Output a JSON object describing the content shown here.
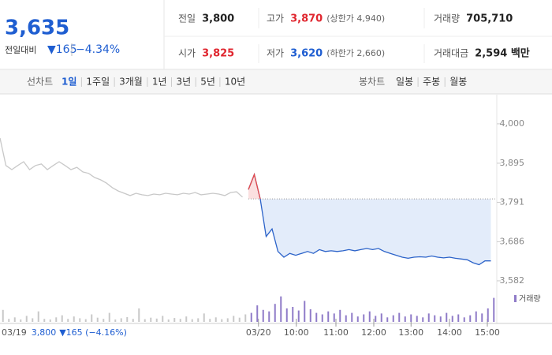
{
  "header": {
    "price": "3,635",
    "change_label": "전일대비",
    "change": "▼165",
    "change_rate": "−4.34%",
    "stats": [
      {
        "label": "전일",
        "value": "3,800"
      },
      {
        "label": "고가",
        "value": "3,870",
        "note": "(상한가 4,940)"
      },
      {
        "label": "거래량",
        "value": "705,710"
      },
      {
        "label": "시가",
        "value": "3,825"
      },
      {
        "label": "저가",
        "value": "3,620",
        "note": "(하한가 2,660)"
      },
      {
        "label": "거래대금",
        "value": "2,594 백만"
      }
    ]
  },
  "tabs": {
    "line_chart": "선차트",
    "periods": [
      "1일",
      "1주일",
      "3개월",
      "1년",
      "3년",
      "5년",
      "10년"
    ],
    "candle_chart": "봉차트",
    "candle_periods": [
      "일봉",
      "주봉",
      "월봉"
    ]
  },
  "info": {
    "date": "03/19",
    "price": "3,800",
    "change": "▼165 (−4.16%)"
  },
  "chart_data": {
    "type": "line",
    "x": [
      0,
      1,
      2,
      3,
      4,
      5,
      6,
      7,
      8,
      9,
      10,
      11,
      12,
      13,
      14,
      15,
      16,
      17,
      18,
      19,
      20,
      21,
      22,
      23,
      24,
      25,
      26,
      27,
      28,
      29,
      30,
      31,
      32,
      33,
      34,
      35,
      36,
      37,
      38,
      39,
      40,
      41,
      42,
      43,
      44,
      45,
      46,
      47,
      48,
      49,
      50,
      51,
      52,
      53,
      54,
      55,
      56,
      57,
      58,
      59,
      60,
      61,
      62,
      63,
      64,
      65,
      66,
      67,
      68,
      69,
      70,
      71,
      72,
      73,
      74,
      75,
      76,
      77,
      78,
      79,
      80,
      81,
      82,
      83
    ],
    "series": [
      {
        "color": "#c8c8c8",
        "values": [
          3962,
          3889,
          3878,
          3889,
          3899,
          3878,
          3889,
          3893,
          3878,
          3889,
          3899,
          3889,
          3878,
          3884,
          3872,
          3868,
          3857,
          3851,
          3842,
          3830,
          3821,
          3815,
          3809,
          3815,
          3811,
          3809,
          3813,
          3811,
          3815,
          3813,
          3811,
          3815,
          3813,
          3817,
          3811,
          3813,
          3815,
          3813,
          3809,
          3817,
          3819,
          3805,
          null,
          null,
          null,
          null,
          null,
          null,
          null,
          null,
          null,
          null,
          null,
          null,
          null,
          null,
          null,
          null,
          null,
          null,
          null,
          null,
          null,
          null,
          null,
          null,
          null,
          null,
          null,
          null,
          null,
          null,
          null,
          null,
          null,
          null,
          null,
          null,
          null,
          null,
          null,
          null,
          null,
          null
        ]
      },
      {
        "color": "#2c63c9",
        "up_color": "#e84a4a",
        "values": [
          null,
          null,
          null,
          null,
          null,
          null,
          null,
          null,
          null,
          null,
          null,
          null,
          null,
          null,
          null,
          null,
          null,
          null,
          null,
          null,
          null,
          null,
          null,
          null,
          null,
          null,
          null,
          null,
          null,
          null,
          null,
          null,
          null,
          null,
          null,
          null,
          null,
          null,
          null,
          null,
          null,
          null,
          3825,
          3865,
          3800,
          3700,
          3720,
          3660,
          3645,
          3655,
          3650,
          3655,
          3660,
          3655,
          3665,
          3660,
          3662,
          3660,
          3662,
          3665,
          3662,
          3665,
          3668,
          3665,
          3668,
          3660,
          3655,
          3650,
          3645,
          3642,
          3645,
          3646,
          3645,
          3648,
          3645,
          3643,
          3645,
          3642,
          3640,
          3638,
          3630,
          3625,
          3635,
          3635
        ]
      },
      {
        "name": "거래량",
        "color": "#8f7bc8",
        "prev_color": "#c8c8c8",
        "axis": "y2",
        "values": [
          40,
          10,
          15,
          8,
          20,
          12,
          35,
          10,
          8,
          15,
          22,
          10,
          18,
          12,
          9,
          25,
          14,
          10,
          30,
          8,
          12,
          16,
          10,
          45,
          9,
          14,
          11,
          20,
          8,
          13,
          10,
          18,
          9,
          12,
          28,
          10,
          15,
          9,
          12,
          20,
          14,
          25,
          30,
          55,
          40,
          35,
          60,
          85,
          45,
          50,
          38,
          70,
          42,
          30,
          25,
          35,
          28,
          40,
          22,
          30,
          18,
          25,
          35,
          20,
          28,
          15,
          22,
          30,
          18,
          25,
          20,
          15,
          28,
          22,
          18,
          30,
          20,
          25,
          15,
          22,
          35,
          28,
          45,
          80
        ]
      }
    ],
    "baseline": 3800,
    "xlim": [
      0,
      84
    ],
    "xticks": [
      {
        "value": 43.7,
        "label": "03/20"
      },
      {
        "value": 50.1,
        "label": "10:00"
      },
      {
        "value": 56.8,
        "label": "11:00"
      },
      {
        "value": 63.2,
        "label": "12:00"
      },
      {
        "value": 69.5,
        "label": "13:00"
      },
      {
        "value": 76,
        "label": "14:00"
      },
      {
        "value": 82.4,
        "label": "15:00"
      }
    ],
    "ylim": [
      3563,
      4067
    ],
    "yticks": [
      {
        "value": 4000,
        "label": "4,000"
      },
      {
        "value": 3895,
        "label": "3,895"
      },
      {
        "value": 3791,
        "label": "3,791"
      },
      {
        "value": 3686,
        "label": "3,686"
      },
      {
        "value": 3582,
        "label": "3,582"
      }
    ],
    "y2lim": [
      0,
      100
    ]
  }
}
